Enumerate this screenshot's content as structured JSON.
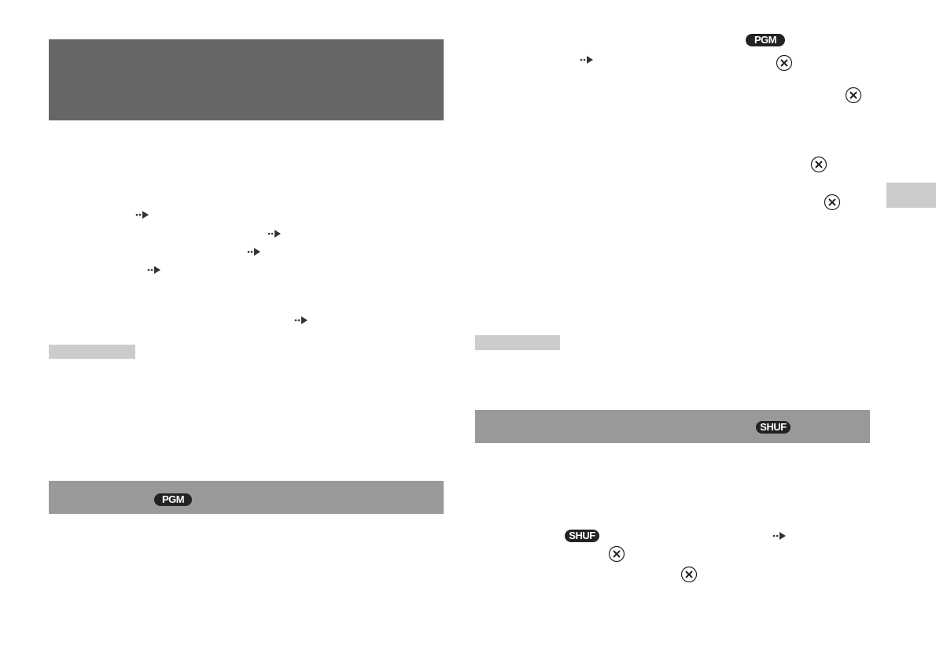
{
  "colors": {
    "title_bar": "#666666",
    "section_bar": "#999999",
    "note_label": "#cccccc",
    "side_tab": "#cccccc",
    "icon": "#333333"
  },
  "badges": {
    "pgm": "PGM",
    "shuf": "SHUF"
  },
  "icons": {
    "arrow": "reference-arrow-icon",
    "cross": "cross-button-icon"
  }
}
